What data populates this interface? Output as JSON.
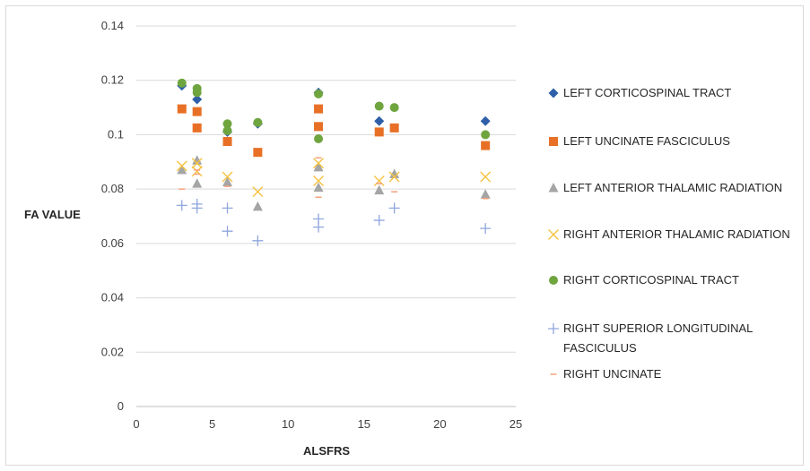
{
  "chart_data": {
    "type": "scatter",
    "title": "",
    "xlabel": "ALSFRS",
    "ylabel": "FA VALUE",
    "xlim": [
      0,
      25
    ],
    "ylim": [
      0,
      0.14
    ],
    "xticks": [
      "0",
      "5",
      "10",
      "15",
      "20",
      "25"
    ],
    "yticks": [
      "0",
      "0.02",
      "0.04",
      "0.06",
      "0.08",
      "0.1",
      "0.12",
      "0.14"
    ],
    "grid": "horizontal",
    "legend_position": "right",
    "series": [
      {
        "name": "LEFT CORTICOSPINAL TRACT",
        "marker": "diamond",
        "color": "#2E5FA8",
        "points": [
          [
            3,
            0.118
          ],
          [
            4,
            0.113
          ],
          [
            6,
            0.101
          ],
          [
            8,
            0.104
          ],
          [
            12,
            0.1155
          ],
          [
            16,
            0.105
          ],
          [
            23,
            0.105
          ]
        ]
      },
      {
        "name": "LEFT UNCINATE FASCICULUS",
        "marker": "square",
        "color": "#E87026",
        "points": [
          [
            3,
            0.1095
          ],
          [
            4,
            0.1085
          ],
          [
            4,
            0.1025
          ],
          [
            6,
            0.0975
          ],
          [
            8,
            0.0935
          ],
          [
            12,
            0.1095
          ],
          [
            12,
            0.103
          ],
          [
            16,
            0.101
          ],
          [
            17,
            0.1025
          ],
          [
            23,
            0.096
          ]
        ]
      },
      {
        "name": "LEFT ANTERIOR THALAMIC RADIATION",
        "marker": "triangle",
        "color": "#A5A5A5",
        "points": [
          [
            3,
            0.087
          ],
          [
            4,
            0.0905
          ],
          [
            4,
            0.082
          ],
          [
            6,
            0.0825
          ],
          [
            8,
            0.0735
          ],
          [
            12,
            0.088
          ],
          [
            12,
            0.0805
          ],
          [
            16,
            0.0795
          ],
          [
            17,
            0.0855
          ],
          [
            23,
            0.078
          ]
        ]
      },
      {
        "name": "RIGHT ANTERIOR THALAMIC RADIATION",
        "marker": "x",
        "color": "#F5C242",
        "points": [
          [
            3,
            0.0885
          ],
          [
            4,
            0.0895
          ],
          [
            4,
            0.0865
          ],
          [
            6,
            0.0845
          ],
          [
            8,
            0.079
          ],
          [
            12,
            0.0895
          ],
          [
            12,
            0.083
          ],
          [
            16,
            0.083
          ],
          [
            17,
            0.0845
          ],
          [
            23,
            0.0845
          ]
        ]
      },
      {
        "name": "RIGHT CORTICOSPINAL TRACT",
        "marker": "circle",
        "color": "#6FA53F",
        "points": [
          [
            3,
            0.119
          ],
          [
            4,
            0.117
          ],
          [
            4,
            0.1155
          ],
          [
            6,
            0.104
          ],
          [
            6,
            0.1015
          ],
          [
            8,
            0.1045
          ],
          [
            12,
            0.115
          ],
          [
            12,
            0.0985
          ],
          [
            16,
            0.1105
          ],
          [
            17,
            0.11
          ],
          [
            23,
            0.1
          ]
        ]
      },
      {
        "name": "RIGHT SUPERIOR LONGITUDINAL FASCICULUS",
        "marker": "plus",
        "color": "#8FA6DE",
        "points": [
          [
            3,
            0.074
          ],
          [
            4,
            0.0745
          ],
          [
            4,
            0.073
          ],
          [
            6,
            0.073
          ],
          [
            6,
            0.0645
          ],
          [
            8,
            0.061
          ],
          [
            12,
            0.069
          ],
          [
            12,
            0.066
          ],
          [
            16,
            0.0685
          ],
          [
            17,
            0.073
          ],
          [
            23,
            0.0655
          ]
        ]
      },
      {
        "name": "RIGHT UNCINATE",
        "marker": "dash",
        "color": "#F4A07A",
        "points": [
          [
            3,
            0.08
          ],
          [
            4,
            0.087
          ],
          [
            4,
            0.0855
          ],
          [
            6,
            0.081
          ],
          [
            12,
            0.0915
          ],
          [
            12,
            0.077
          ],
          [
            16,
            0.082
          ],
          [
            17,
            0.079
          ],
          [
            23,
            0.0765
          ]
        ]
      }
    ]
  }
}
